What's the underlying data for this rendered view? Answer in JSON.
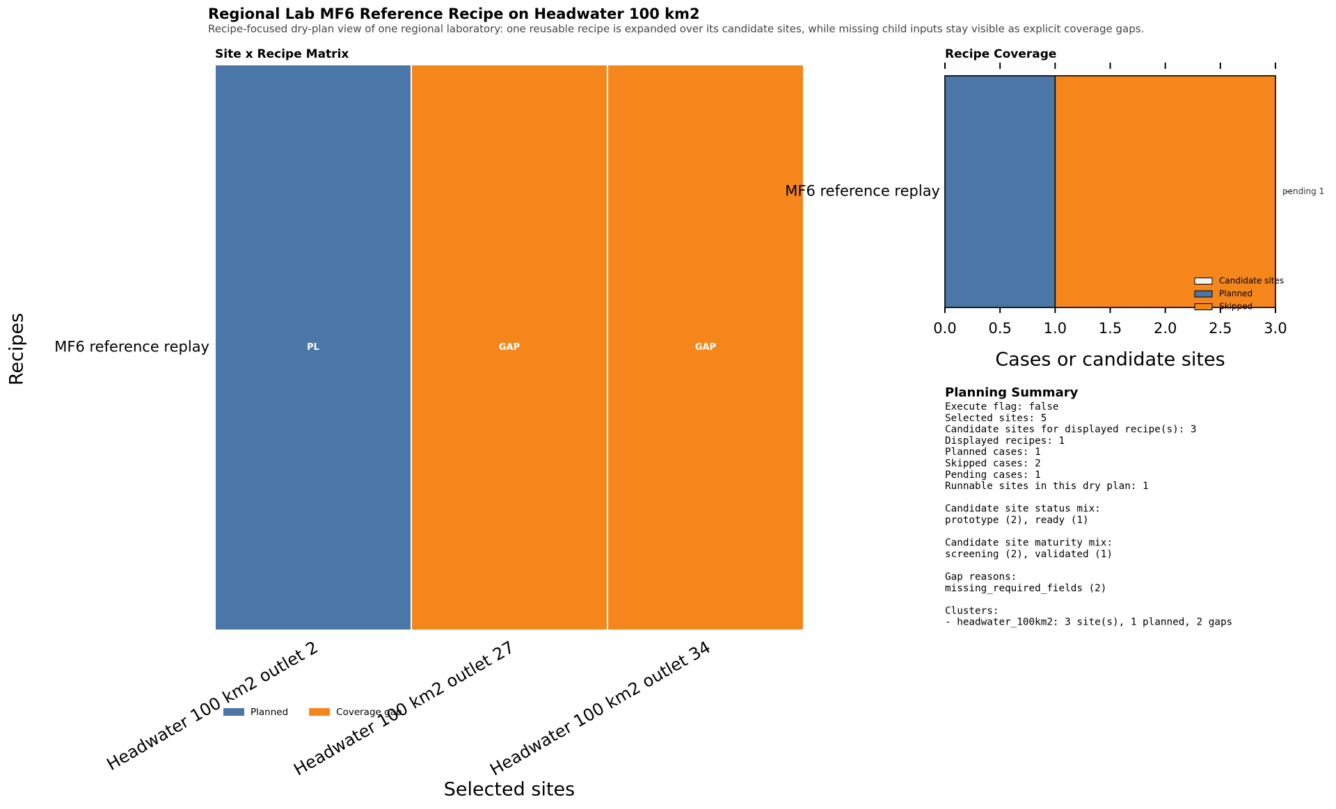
{
  "title": "Regional Lab MF6 Reference Recipe on Headwater 100 km2",
  "subtitle": "Recipe-focused dry-plan view of one regional laboratory: one reusable recipe is expanded over its candidate sites, while missing child inputs stay visible as explicit coverage gaps.",
  "chart_data": [
    {
      "type": "heatmap",
      "title": "Site x Recipe Matrix",
      "xlabel": "Selected sites",
      "ylabel": "Recipes",
      "categories": [
        "Headwater 100 km2 outlet 2",
        "Headwater 100 km2 outlet 27",
        "Headwater 100 km2 outlet 34"
      ],
      "rows": [
        "MF6 reference replay"
      ],
      "cell_labels": [
        [
          "PL",
          "GAP",
          "GAP"
        ]
      ],
      "cell_colors": [
        [
          "#4a76a8",
          "#f5861b",
          "#f5861b"
        ]
      ],
      "legend": [
        {
          "name": "Planned",
          "color": "#4a76a8"
        },
        {
          "name": "Coverage gap",
          "color": "#f5861b"
        }
      ],
      "legend_position": "lower left"
    },
    {
      "type": "bar",
      "orientation": "horizontal",
      "title": "Recipe Coverage",
      "xlabel": "Cases or candidate sites",
      "categories": [
        "MF6 reference replay"
      ],
      "series": [
        {
          "name": "Candidate sites",
          "color": "#f2f2f2",
          "values": [
            3
          ],
          "stacked": false
        },
        {
          "name": "Planned",
          "color": "#4a76a8",
          "values": [
            1
          ],
          "stacked": true
        },
        {
          "name": "Skipped",
          "color": "#f5861b",
          "values": [
            2
          ],
          "stacked": true
        }
      ],
      "annotations": [
        "pending 1"
      ],
      "xlim": [
        0,
        3
      ],
      "xticks": [
        {
          "value": 0,
          "label": "0.0"
        },
        {
          "value": 0.5,
          "label": "0.5"
        },
        {
          "value": 1,
          "label": "1.0"
        },
        {
          "value": 1.5,
          "label": "1.5"
        },
        {
          "value": 2,
          "label": "2.0"
        },
        {
          "value": 2.5,
          "label": "2.5"
        },
        {
          "value": 3,
          "label": "3.0"
        }
      ],
      "legend_position": "lower right"
    }
  ],
  "summary": {
    "title": "Planning Summary",
    "blocks": [
      [
        "Execute flag: false",
        "Selected sites: 5",
        "Candidate sites for displayed recipe(s): 3",
        "Displayed recipes: 1",
        "Planned cases: 1",
        "Skipped cases: 2",
        "Pending cases: 1",
        "Runnable sites in this dry plan: 1"
      ],
      [
        "Candidate site status mix:",
        "prototype (2), ready (1)"
      ],
      [
        "Candidate site maturity mix:",
        "screening (2), validated (1)"
      ],
      [
        "Gap reasons:",
        "missing_required_fields (2)"
      ],
      [
        "Clusters:",
        "- headwater_100km2: 3 site(s), 1 planned, 2 gaps"
      ]
    ]
  }
}
